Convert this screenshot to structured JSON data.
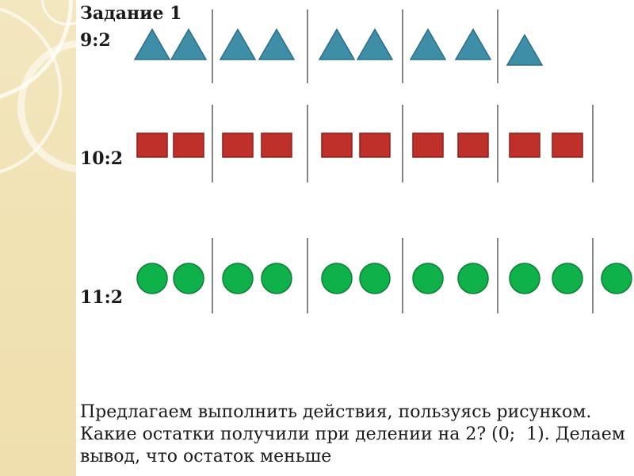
{
  "slide": {
    "title": "Задание 1",
    "rows": [
      {
        "expression": "9:2",
        "shape": "triangle",
        "count": 9,
        "color": "#3f8ea8",
        "stroke": "#2c6f87"
      },
      {
        "expression": "10:2",
        "shape": "square",
        "count": 10,
        "color": "#c0302a",
        "stroke": "#8e1f1a"
      },
      {
        "expression": "11:2",
        "shape": "circle",
        "count": 11,
        "color": "#0fb14a",
        "stroke": "#0b7f36"
      }
    ],
    "conclusion": "Предлагаем выполнить действия, пользуясь рисунком. Какие остатки получили при делении на 2? (0;  1). Делаем вывод, что остаток меньше"
  }
}
